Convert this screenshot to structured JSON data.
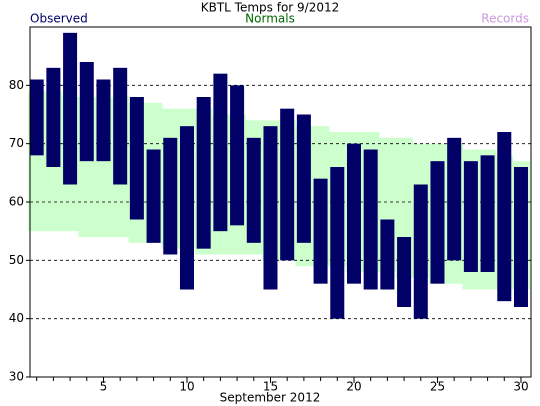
{
  "chart_data": {
    "type": "floating-bar",
    "title": "KBTL Temps for 9/2012",
    "x_label": "September 2012",
    "x": [
      1,
      2,
      3,
      4,
      5,
      6,
      7,
      8,
      9,
      10,
      11,
      12,
      13,
      14,
      15,
      16,
      17,
      18,
      19,
      20,
      21,
      22,
      23,
      24,
      25,
      26,
      27,
      28,
      29,
      30
    ],
    "xlim": [
      0.6,
      30.6
    ],
    "xticks": [
      5,
      10,
      15,
      20,
      25,
      30
    ],
    "ylim": [
      30,
      90
    ],
    "yticks": [
      30,
      40,
      50,
      60,
      70,
      80
    ],
    "grid": true,
    "series": [
      {
        "name": "Observed",
        "color": "#000066",
        "high": [
          81,
          83,
          89,
          84,
          81,
          83,
          78,
          69,
          71,
          73,
          78,
          82,
          80,
          71,
          73,
          76,
          75,
          64,
          66,
          70,
          69,
          57,
          54,
          63,
          67,
          71,
          67,
          68,
          72,
          66
        ],
        "low": [
          68,
          66,
          63,
          67,
          67,
          63,
          57,
          53,
          51,
          45,
          52,
          55,
          56,
          53,
          45,
          50,
          53,
          46,
          40,
          46,
          45,
          45,
          42,
          40,
          46,
          50,
          48,
          48,
          43,
          42
        ]
      },
      {
        "name": "Normals",
        "color": "#ccffcc",
        "label_color": "#006600",
        "high": [
          79,
          79,
          78,
          78,
          78,
          78,
          77,
          77,
          76,
          76,
          76,
          75,
          75,
          74,
          74,
          74,
          73,
          73,
          72,
          72,
          72,
          71,
          71,
          70,
          70,
          70,
          69,
          69,
          68,
          67
        ],
        "low": [
          55,
          55,
          55,
          54,
          54,
          54,
          53,
          53,
          52,
          52,
          51,
          51,
          51,
          51,
          50,
          50,
          49,
          49,
          49,
          48,
          48,
          48,
          47,
          47,
          46,
          46,
          45,
          45,
          45,
          45
        ]
      },
      {
        "name": "Records",
        "color": "#cc99dd"
      }
    ]
  }
}
